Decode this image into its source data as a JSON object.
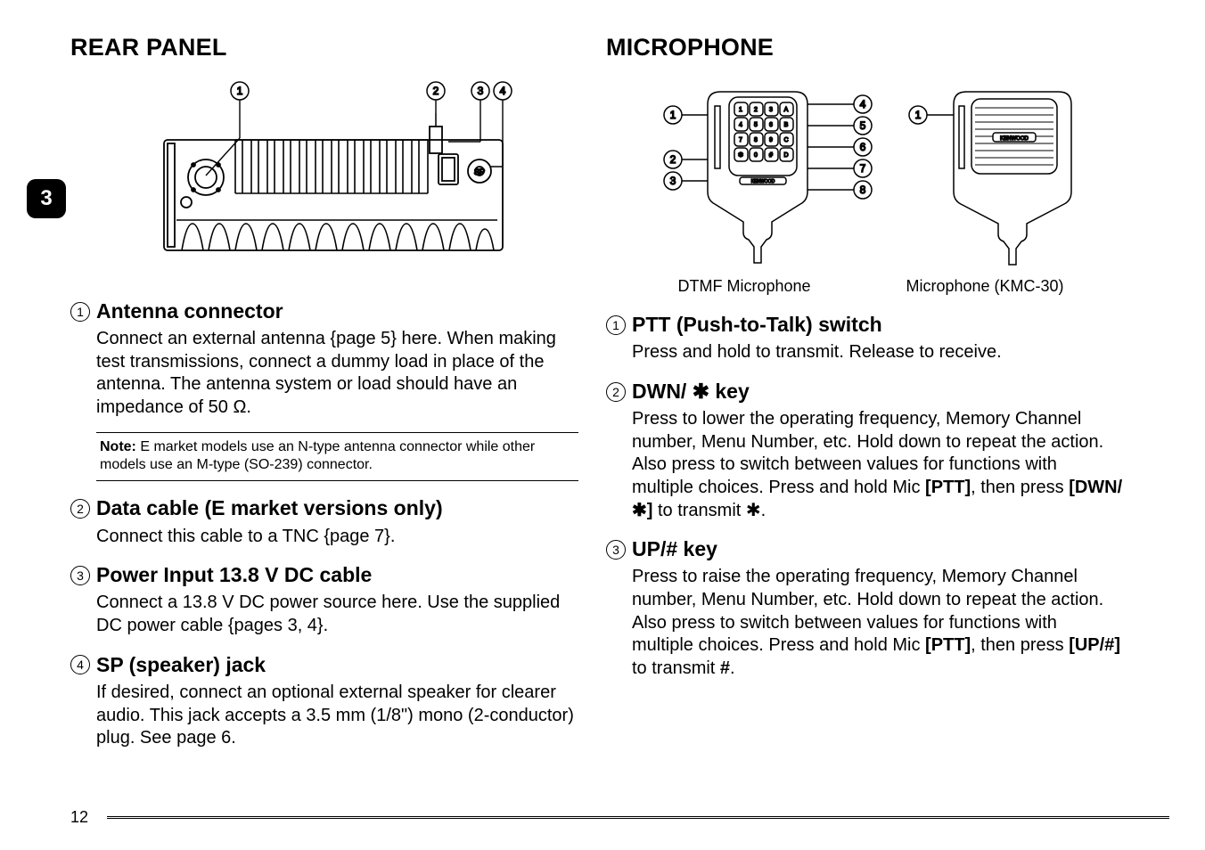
{
  "pageNumber": "12",
  "tabNumber": "3",
  "left": {
    "heading": "REAR PANEL",
    "rearFigure": {
      "callouts": [
        "1",
        "2",
        "3",
        "4"
      ],
      "spLabel": "SP"
    },
    "items": [
      {
        "num": "1",
        "title": "Antenna connector",
        "body": "Connect an external antenna {page 5} here.  When making test transmissions, connect a dummy load in place of the antenna.  The antenna system or load should have an impedance of 50 Ω.",
        "note": {
          "label": "Note:",
          "text": "  E market models use an N-type antenna connector while other models use an M-type (SO-239) connector."
        }
      },
      {
        "num": "2",
        "title": "Data cable (E market versions only)",
        "body": "Connect this cable to a TNC {page 7}."
      },
      {
        "num": "3",
        "title": "Power Input 13.8 V DC cable",
        "body": "Connect a 13.8 V DC power source here.  Use the supplied DC power cable {pages 3, 4}."
      },
      {
        "num": "4",
        "title": "SP (speaker) jack",
        "body": "If desired, connect an optional external speaker for clearer audio.  This jack accepts a 3.5 mm (1/8\") mono (2-conductor) plug.  See page 6."
      }
    ]
  },
  "right": {
    "heading": "MICROPHONE",
    "micFigure": {
      "leftCallouts": [
        "1",
        "2",
        "3"
      ],
      "rightCallouts": [
        "4",
        "5",
        "6",
        "7",
        "8"
      ],
      "kmcCallout": "1",
      "keypad": [
        [
          "1",
          "2",
          "3",
          "A"
        ],
        [
          "4",
          "5",
          "6",
          "B"
        ],
        [
          "7",
          "8",
          "9",
          "C"
        ],
        [
          "✱",
          "0",
          "#",
          "D"
        ]
      ],
      "brandSmall": "KENWOOD",
      "brandKmc": "KENWOOD"
    },
    "captions": {
      "dtmf": "DTMF Microphone",
      "kmc": "Microphone (KMC-30)"
    },
    "items": [
      {
        "num": "1",
        "title": "PTT (Push-to-Talk) switch",
        "body": "Press and hold to transmit.  Release to receive."
      },
      {
        "num": "2",
        "title": "DWN/ ✱ key",
        "body_html": "Press to lower the operating frequency, Memory Channel number, Menu Number, etc.  Hold down to repeat the action.  Also press to switch between values for functions with multiple choices.  Press and hold Mic <b>[PTT]</b>, then press <b>[DWN/✱]</b> to transmit  ✱."
      },
      {
        "num": "3",
        "title": "UP/# key",
        "body_html": "Press to raise the operating frequency, Memory Channel number, Menu Number, etc.  Hold down to repeat the action.  Also press to switch between values for functions with multiple choices.  Press and hold Mic <b>[PTT]</b>, then press <b>[UP/#]</b> to transmit  <b>#</b>."
      }
    ]
  }
}
